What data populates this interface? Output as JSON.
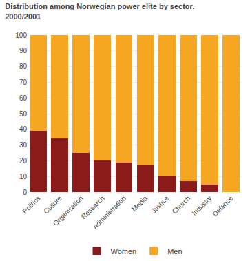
{
  "chart_data": {
    "type": "bar",
    "title": "Distribution among Norwegian power elite by sector.",
    "subtitle": "2000/2001",
    "categories": [
      "Politics",
      "Culture",
      "Organisation",
      "Research",
      "Administration",
      "Media",
      "Justice",
      "Church",
      "Industry",
      "Defence"
    ],
    "series": [
      {
        "name": "Women",
        "color": "#8B1A1A",
        "values": [
          39,
          34,
          25,
          20,
          19,
          17,
          10,
          7,
          5,
          0
        ]
      },
      {
        "name": "Men",
        "color": "#F5A623",
        "values": [
          61,
          66,
          75,
          80,
          81,
          83,
          90,
          93,
          95,
          100
        ]
      }
    ],
    "stacked": true,
    "ylim": [
      0,
      100
    ],
    "yticks": [
      0,
      10,
      20,
      30,
      40,
      50,
      60,
      70,
      80,
      90,
      100
    ],
    "grid": true,
    "legend": "bottom"
  }
}
